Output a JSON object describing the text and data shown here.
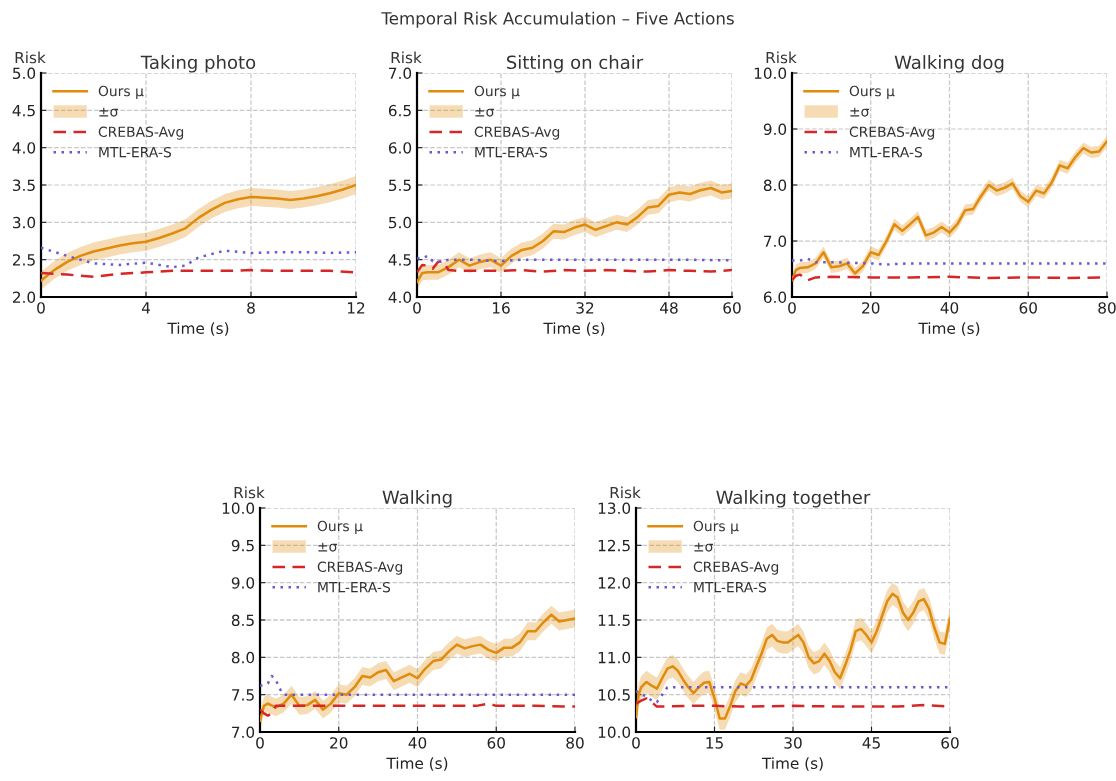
{
  "chart_data": [
    {
      "type": "line",
      "title": "Taking photo",
      "annotations": [
        "±σ",
        "Temporal Risk Accumulation – Five Actions"
      ],
      "xlabel": "Time (s)",
      "ylabel": "Risk",
      "xlim": [
        0,
        12
      ],
      "xticks": [
        0,
        4,
        8,
        12
      ],
      "ylim": [
        2,
        5
      ],
      "yticks": [
        {
          "value": 2,
          "label": "2.0"
        },
        2.5,
        {
          "value": 3,
          "label": "3.0"
        },
        3.5,
        {
          "value": 4,
          "label": "4.0"
        },
        4.5,
        {
          "value": 5,
          "label": "5.0"
        }
      ],
      "grid": true,
      "legend": "top left",
      "series": [
        {
          "name": "Ours μ",
          "color": "#e08b0b",
          "line_style": "solid",
          "x": [
            0,
            0.5,
            1,
            1.5,
            2,
            2.5,
            3,
            3.5,
            4,
            4.5,
            5,
            5.5,
            6,
            6.5,
            7,
            7.5,
            8,
            8.5,
            9,
            9.5,
            10,
            10.5,
            11,
            11.5,
            12
          ],
          "values": [
            2.22,
            2.36,
            2.47,
            2.55,
            2.61,
            2.65,
            2.69,
            2.72,
            2.74,
            2.79,
            2.85,
            2.92,
            3.06,
            3.17,
            3.26,
            3.31,
            3.34,
            3.33,
            3.32,
            3.3,
            3.32,
            3.35,
            3.39,
            3.44,
            3.5
          ],
          "lower": [
            2.1,
            2.24,
            2.35,
            2.43,
            2.49,
            2.53,
            2.57,
            2.6,
            2.62,
            2.67,
            2.73,
            2.8,
            2.94,
            3.05,
            3.14,
            3.19,
            3.22,
            3.21,
            3.2,
            3.18,
            3.2,
            3.23,
            3.27,
            3.32,
            3.38
          ],
          "upper": [
            2.34,
            2.48,
            2.59,
            2.67,
            2.73,
            2.77,
            2.81,
            2.84,
            2.86,
            2.91,
            2.97,
            3.04,
            3.18,
            3.29,
            3.38,
            3.43,
            3.46,
            3.45,
            3.44,
            3.42,
            3.44,
            3.47,
            3.51,
            3.56,
            3.62
          ]
        },
        {
          "name": "CREBAS-Avg",
          "color": "#d62728",
          "line_style": "dashed",
          "x": [
            0,
            1,
            2,
            3,
            4,
            5,
            6,
            7,
            8,
            9,
            10,
            11,
            12
          ],
          "values": [
            2.32,
            2.3,
            2.27,
            2.31,
            2.33,
            2.35,
            2.35,
            2.35,
            2.36,
            2.35,
            2.35,
            2.35,
            2.33
          ]
        },
        {
          "name": "MTL-ERA-S",
          "color": "#6a5acd",
          "line_style": "dotted",
          "x": [
            0,
            1,
            2,
            3,
            4,
            5,
            5.5,
            6,
            7,
            8,
            9,
            10,
            11,
            12
          ],
          "values": [
            2.66,
            2.55,
            2.45,
            2.43,
            2.46,
            2.4,
            2.42,
            2.53,
            2.62,
            2.59,
            2.6,
            2.6,
            2.59,
            2.6
          ]
        }
      ]
    },
    {
      "type": "line",
      "title": "Sitting on chair",
      "annotations": [
        "±σ"
      ],
      "xlabel": "Time (s)",
      "ylabel": "Risk",
      "xlim": [
        0,
        60
      ],
      "xticks": [
        0,
        16,
        32,
        48,
        60
      ],
      "ylim": [
        4,
        7
      ],
      "yticks": [
        {
          "value": 4,
          "label": "4.0"
        },
        4.5,
        {
          "value": 5,
          "label": "5.0"
        },
        5.5,
        {
          "value": 6,
          "label": "6.0"
        },
        6.5,
        {
          "value": 7,
          "label": "7.0"
        }
      ],
      "grid": true,
      "legend": "top left",
      "series": [
        {
          "name": "Ours μ",
          "color": "#e08b0b",
          "line_style": "solid",
          "x": [
            0,
            1,
            2,
            4,
            6,
            8,
            10,
            12,
            14,
            16,
            18,
            20,
            22,
            24,
            26,
            28,
            30,
            32,
            34,
            36,
            38,
            40,
            42,
            44,
            46,
            48,
            50,
            52,
            54,
            56,
            58,
            60
          ],
          "values": [
            4.2,
            4.32,
            4.33,
            4.33,
            4.4,
            4.5,
            4.42,
            4.47,
            4.5,
            4.42,
            4.55,
            4.63,
            4.66,
            4.75,
            4.88,
            4.87,
            4.93,
            4.97,
            4.9,
            4.95,
            5.0,
            4.97,
            5.07,
            5.2,
            5.22,
            5.37,
            5.4,
            5.38,
            5.43,
            5.46,
            5.4,
            5.42
          ],
          "lower": [
            4.1,
            4.22,
            4.23,
            4.23,
            4.3,
            4.4,
            4.32,
            4.37,
            4.4,
            4.32,
            4.45,
            4.53,
            4.56,
            4.65,
            4.78,
            4.77,
            4.83,
            4.87,
            4.8,
            4.85,
            4.9,
            4.87,
            4.97,
            5.1,
            5.12,
            5.27,
            5.3,
            5.28,
            5.33,
            5.36,
            5.3,
            5.32
          ],
          "upper": [
            4.3,
            4.42,
            4.43,
            4.43,
            4.5,
            4.6,
            4.52,
            4.57,
            4.6,
            4.52,
            4.65,
            4.73,
            4.76,
            4.85,
            4.98,
            4.97,
            5.03,
            5.07,
            5.0,
            5.05,
            5.1,
            5.07,
            5.17,
            5.3,
            5.32,
            5.47,
            5.5,
            5.48,
            5.53,
            5.56,
            5.5,
            5.52
          ]
        },
        {
          "name": "CREBAS-Avg",
          "color": "#d62728",
          "line_style": "dashed",
          "x": [
            0,
            1,
            2,
            3,
            4,
            5,
            6,
            8,
            12,
            16,
            20,
            24,
            28,
            32,
            36,
            40,
            44,
            48,
            52,
            56,
            60
          ],
          "values": [
            4.33,
            4.43,
            4.42,
            4.38,
            4.47,
            4.48,
            4.36,
            4.35,
            4.35,
            4.35,
            4.36,
            4.34,
            4.36,
            4.35,
            4.36,
            4.35,
            4.34,
            4.36,
            4.35,
            4.34,
            4.36
          ]
        },
        {
          "name": "MTL-ERA-S",
          "color": "#6a5acd",
          "line_style": "dotted",
          "x": [
            0,
            1,
            2,
            3,
            4,
            5,
            6,
            10,
            16,
            20,
            30,
            40,
            50,
            60
          ],
          "values": [
            4.52,
            4.52,
            4.55,
            4.48,
            4.47,
            4.48,
            4.5,
            4.5,
            4.48,
            4.5,
            4.5,
            4.5,
            4.5,
            4.49
          ]
        }
      ]
    },
    {
      "type": "line",
      "title": "Walking dog",
      "annotations": [
        "±σ"
      ],
      "xlabel": "Time (s)",
      "ylabel": "Risk",
      "xlim": [
        0,
        80
      ],
      "xticks": [
        0,
        20,
        40,
        60,
        80
      ],
      "ylim": [
        6,
        10
      ],
      "yticks": [
        {
          "value": 6,
          "label": "6.0"
        },
        {
          "value": 7,
          "label": "7.0"
        },
        {
          "value": 8,
          "label": "8.0"
        },
        {
          "value": 9,
          "label": "9.0"
        },
        {
          "value": 10,
          "label": "10.0"
        }
      ],
      "grid": true,
      "legend": "top left",
      "series": [
        {
          "name": "Ours μ",
          "color": "#e08b0b",
          "line_style": "solid",
          "x": [
            0,
            1,
            2,
            4,
            6,
            8,
            10,
            12,
            14,
            16,
            18,
            20,
            22,
            24,
            26,
            28,
            30,
            32,
            34,
            36,
            38,
            40,
            42,
            44,
            46,
            48,
            50,
            52,
            54,
            56,
            58,
            60,
            62,
            64,
            66,
            68,
            70,
            72,
            74,
            76,
            78,
            80
          ],
          "values": [
            6.3,
            6.48,
            6.52,
            6.53,
            6.6,
            6.8,
            6.53,
            6.55,
            6.6,
            6.42,
            6.55,
            6.8,
            6.75,
            7.0,
            7.3,
            7.18,
            7.3,
            7.43,
            7.1,
            7.15,
            7.25,
            7.15,
            7.3,
            7.55,
            7.57,
            7.8,
            8.0,
            7.9,
            7.95,
            8.03,
            7.8,
            7.7,
            7.9,
            7.85,
            8.05,
            8.35,
            8.3,
            8.5,
            8.66,
            8.58,
            8.6,
            8.78
          ],
          "lower": [
            6.2,
            6.38,
            6.42,
            6.43,
            6.5,
            6.7,
            6.43,
            6.45,
            6.5,
            6.32,
            6.45,
            6.7,
            6.65,
            6.9,
            7.2,
            7.08,
            7.2,
            7.33,
            7.0,
            7.05,
            7.15,
            7.05,
            7.2,
            7.45,
            7.47,
            7.7,
            7.9,
            7.8,
            7.85,
            7.93,
            7.7,
            7.6,
            7.8,
            7.75,
            7.95,
            8.25,
            8.2,
            8.4,
            8.56,
            8.48,
            8.5,
            8.68
          ],
          "upper": [
            6.4,
            6.58,
            6.62,
            6.63,
            6.7,
            6.9,
            6.63,
            6.65,
            6.7,
            6.52,
            6.65,
            6.9,
            6.85,
            7.1,
            7.4,
            7.28,
            7.4,
            7.53,
            7.2,
            7.25,
            7.35,
            7.25,
            7.4,
            7.65,
            7.67,
            7.9,
            8.1,
            8.0,
            8.05,
            8.13,
            7.9,
            7.8,
            8.0,
            7.95,
            8.15,
            8.45,
            8.4,
            8.6,
            8.76,
            8.68,
            8.7,
            8.88
          ]
        },
        {
          "name": "CREBAS-Avg",
          "color": "#d62728",
          "line_style": "dashed",
          "x": [
            0,
            1,
            2,
            3,
            4,
            6,
            10,
            20,
            30,
            40,
            50,
            60,
            70,
            80
          ],
          "values": [
            6.3,
            6.38,
            6.4,
            6.35,
            6.3,
            6.35,
            6.36,
            6.35,
            6.35,
            6.36,
            6.34,
            6.35,
            6.34,
            6.35
          ]
        },
        {
          "name": "MTL-ERA-S",
          "color": "#6a5acd",
          "line_style": "dotted",
          "x": [
            0,
            2,
            4,
            6,
            10,
            20,
            24,
            30,
            40,
            50,
            60,
            70,
            80
          ],
          "values": [
            6.65,
            6.65,
            6.68,
            6.62,
            6.62,
            6.6,
            6.58,
            6.6,
            6.6,
            6.6,
            6.6,
            6.6,
            6.6
          ]
        }
      ]
    },
    {
      "type": "line",
      "title": "Walking",
      "annotations": [
        "±σ"
      ],
      "xlabel": "Time (s)",
      "ylabel": "Risk",
      "xlim": [
        0,
        80
      ],
      "xticks": [
        0,
        20,
        40,
        60,
        80
      ],
      "ylim": [
        7,
        10
      ],
      "yticks": [
        {
          "value": 7,
          "label": "7.0"
        },
        7.5,
        {
          "value": 8,
          "label": "8.0"
        },
        8.5,
        {
          "value": 9,
          "label": "9.0"
        },
        9.5,
        {
          "value": 10,
          "label": "10.0"
        }
      ],
      "grid": true,
      "legend": "top left",
      "series": [
        {
          "name": "Ours μ",
          "color": "#e08b0b",
          "line_style": "solid",
          "x": [
            0,
            1,
            2,
            4,
            6,
            8,
            10,
            12,
            14,
            16,
            18,
            20,
            22,
            24,
            26,
            28,
            30,
            32,
            34,
            36,
            38,
            40,
            42,
            44,
            46,
            48,
            50,
            52,
            54,
            56,
            58,
            60,
            62,
            64,
            66,
            68,
            70,
            72,
            74,
            76,
            78,
            80
          ],
          "values": [
            7.15,
            7.35,
            7.38,
            7.33,
            7.38,
            7.5,
            7.35,
            7.36,
            7.43,
            7.3,
            7.38,
            7.52,
            7.5,
            7.6,
            7.75,
            7.73,
            7.8,
            7.83,
            7.68,
            7.73,
            7.78,
            7.72,
            7.85,
            7.95,
            7.97,
            8.08,
            8.17,
            8.12,
            8.15,
            8.17,
            8.1,
            8.06,
            8.13,
            8.13,
            8.2,
            8.35,
            8.35,
            8.47,
            8.57,
            8.48,
            8.5,
            8.52
          ],
          "lower": [
            7.03,
            7.23,
            7.26,
            7.21,
            7.26,
            7.38,
            7.23,
            7.24,
            7.31,
            7.18,
            7.26,
            7.4,
            7.38,
            7.48,
            7.63,
            7.61,
            7.68,
            7.71,
            7.56,
            7.61,
            7.66,
            7.6,
            7.73,
            7.83,
            7.85,
            7.96,
            8.05,
            8.0,
            8.03,
            8.05,
            7.98,
            7.94,
            8.01,
            8.01,
            8.08,
            8.23,
            8.23,
            8.35,
            8.45,
            8.36,
            8.38,
            8.4
          ],
          "upper": [
            7.27,
            7.47,
            7.5,
            7.45,
            7.5,
            7.62,
            7.47,
            7.48,
            7.55,
            7.42,
            7.5,
            7.64,
            7.62,
            7.72,
            7.87,
            7.85,
            7.92,
            7.95,
            7.8,
            7.85,
            7.9,
            7.84,
            7.97,
            8.07,
            8.09,
            8.2,
            8.29,
            8.24,
            8.27,
            8.29,
            8.22,
            8.18,
            8.25,
            8.25,
            8.32,
            8.47,
            8.47,
            8.59,
            8.69,
            8.6,
            8.62,
            8.64
          ]
        },
        {
          "name": "CREBAS-Avg",
          "color": "#d62728",
          "line_style": "dashed",
          "x": [
            0,
            1,
            2,
            3,
            4,
            5,
            10,
            20,
            30,
            40,
            50,
            55,
            58,
            60,
            70,
            80
          ],
          "values": [
            7.3,
            7.25,
            7.22,
            7.25,
            7.35,
            7.35,
            7.35,
            7.35,
            7.35,
            7.35,
            7.35,
            7.35,
            7.38,
            7.35,
            7.35,
            7.34
          ]
        },
        {
          "name": "MTL-ERA-S",
          "color": "#6a5acd",
          "line_style": "dotted",
          "x": [
            0,
            1,
            2,
            3,
            4,
            5,
            6,
            10,
            20,
            30,
            40,
            50,
            60,
            70,
            80
          ],
          "values": [
            7.62,
            7.63,
            7.65,
            7.75,
            7.7,
            7.58,
            7.5,
            7.5,
            7.5,
            7.5,
            7.5,
            7.5,
            7.5,
            7.5,
            7.5
          ]
        }
      ]
    },
    {
      "type": "line",
      "title": "Walking together",
      "annotations": [
        "±σ"
      ],
      "xlabel": "Time (s)",
      "ylabel": "Risk",
      "xlim": [
        0,
        60
      ],
      "xticks": [
        0,
        15,
        30,
        45,
        60
      ],
      "ylim": [
        10,
        13
      ],
      "yticks": [
        {
          "value": 10,
          "label": "10.0"
        },
        10.5,
        {
          "value": 11,
          "label": "11.0"
        },
        11.5,
        {
          "value": 12,
          "label": "12.0"
        },
        12.5,
        {
          "value": 13,
          "label": "13.0"
        }
      ],
      "grid": true,
      "legend": "top left",
      "series": [
        {
          "name": "Ours μ",
          "color": "#e08b0b",
          "line_style": "solid",
          "x": [
            0,
            0.5,
            1,
            2,
            3,
            4,
            5,
            6,
            7,
            8,
            9,
            10,
            11,
            12,
            13,
            14,
            15,
            16,
            17,
            18,
            19,
            20,
            21,
            22,
            23,
            24,
            25,
            26,
            27,
            28,
            29,
            30,
            31,
            32,
            33,
            34,
            35,
            36,
            37,
            38,
            39,
            40,
            41,
            42,
            43,
            44,
            45,
            46,
            47,
            48,
            49,
            50,
            51,
            52,
            53,
            54,
            55,
            56,
            57,
            58,
            59,
            60
          ],
          "values": [
            10.2,
            10.5,
            10.6,
            10.67,
            10.62,
            10.58,
            10.72,
            10.85,
            10.88,
            10.82,
            10.7,
            10.6,
            10.52,
            10.6,
            10.66,
            10.67,
            10.45,
            10.18,
            10.18,
            10.35,
            10.55,
            10.65,
            10.62,
            10.7,
            10.88,
            11.05,
            11.25,
            11.3,
            11.22,
            11.2,
            11.2,
            11.25,
            11.3,
            11.2,
            11.0,
            10.92,
            10.95,
            11.05,
            10.95,
            10.8,
            10.72,
            10.9,
            11.1,
            11.35,
            11.38,
            11.3,
            11.2,
            11.35,
            11.55,
            11.75,
            11.85,
            11.8,
            11.6,
            11.5,
            11.6,
            11.75,
            11.78,
            11.65,
            11.4,
            11.2,
            11.18,
            11.52
          ],
          "lower": [
            10.05,
            10.35,
            10.45,
            10.52,
            10.47,
            10.43,
            10.57,
            10.7,
            10.73,
            10.67,
            10.55,
            10.45,
            10.37,
            10.45,
            10.51,
            10.52,
            10.3,
            10.03,
            10.03,
            10.2,
            10.4,
            10.5,
            10.47,
            10.55,
            10.73,
            10.9,
            11.1,
            11.15,
            11.07,
            11.05,
            11.05,
            11.1,
            11.15,
            11.05,
            10.85,
            10.77,
            10.8,
            10.9,
            10.8,
            10.65,
            10.57,
            10.75,
            10.95,
            11.2,
            11.23,
            11.15,
            11.05,
            11.2,
            11.4,
            11.6,
            11.7,
            11.65,
            11.45,
            11.35,
            11.45,
            11.6,
            11.63,
            11.5,
            11.25,
            11.05,
            11.03,
            11.37
          ],
          "upper": [
            10.35,
            10.65,
            10.75,
            10.82,
            10.77,
            10.73,
            10.87,
            11.0,
            11.03,
            10.97,
            10.85,
            10.75,
            10.67,
            10.75,
            10.81,
            10.82,
            10.6,
            10.33,
            10.33,
            10.5,
            10.7,
            10.8,
            10.77,
            10.85,
            11.03,
            11.2,
            11.4,
            11.45,
            11.37,
            11.35,
            11.35,
            11.4,
            11.45,
            11.35,
            11.15,
            11.07,
            11.1,
            11.2,
            11.1,
            10.95,
            10.87,
            11.05,
            11.25,
            11.5,
            11.53,
            11.45,
            11.35,
            11.5,
            11.7,
            11.9,
            12.0,
            11.95,
            11.75,
            11.65,
            11.75,
            11.9,
            11.93,
            11.8,
            11.55,
            11.35,
            11.33,
            11.67
          ]
        },
        {
          "name": "CREBAS-Avg",
          "color": "#d62728",
          "line_style": "dashed",
          "x": [
            0,
            1,
            2,
            3,
            4,
            5,
            10,
            15,
            20,
            30,
            40,
            50,
            55,
            60
          ],
          "values": [
            10.38,
            10.42,
            10.45,
            10.4,
            10.34,
            10.34,
            10.35,
            10.35,
            10.34,
            10.35,
            10.34,
            10.34,
            10.36,
            10.34
          ]
        },
        {
          "name": "MTL-ERA-S",
          "color": "#6a5acd",
          "line_style": "dotted",
          "x": [
            0,
            1,
            2,
            3,
            4,
            5,
            6,
            10,
            20,
            30,
            40,
            50,
            60
          ],
          "values": [
            10.55,
            10.5,
            10.48,
            10.42,
            10.4,
            10.5,
            10.6,
            10.6,
            10.6,
            10.6,
            10.6,
            10.6,
            10.6
          ]
        }
      ]
    }
  ]
}
